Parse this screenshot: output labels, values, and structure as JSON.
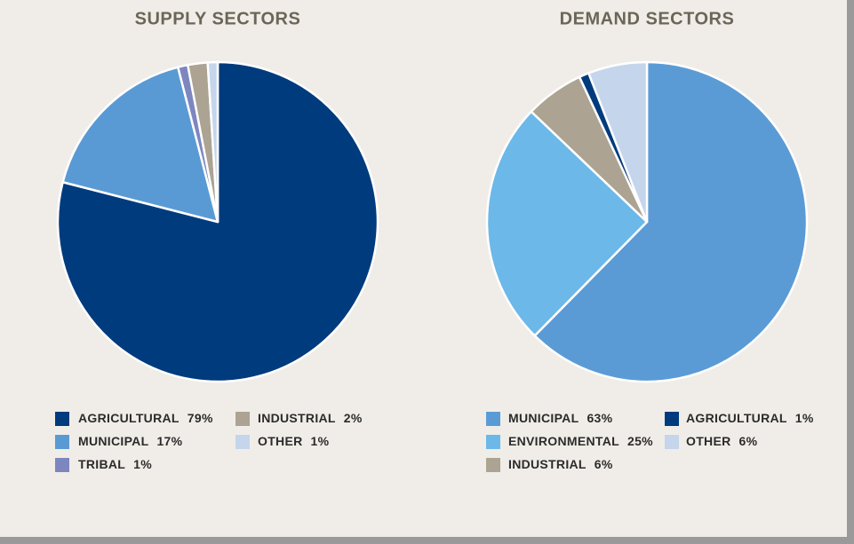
{
  "chart_data": [
    {
      "type": "pie",
      "title": "SUPPLY SECTORS",
      "categories": [
        "AGRICULTURAL",
        "MUNICIPAL",
        "TRIBAL",
        "INDUSTRIAL",
        "OTHER"
      ],
      "values": [
        79,
        17,
        1,
        2,
        1
      ],
      "value_labels": [
        "79%",
        "17%",
        "1%",
        "2%",
        "1%"
      ],
      "colors": [
        "#003b7e",
        "#5a9ad4",
        "#7d86bf",
        "#aca392",
        "#c5d5ec"
      ]
    },
    {
      "type": "pie",
      "title": "DEMAND SECTORS",
      "categories": [
        "MUNICIPAL",
        "ENVIRONMENTAL",
        "INDUSTRIAL",
        "AGRICULTURAL",
        "OTHER"
      ],
      "values": [
        63,
        25,
        6,
        1,
        6
      ],
      "value_labels": [
        "63%",
        "25%",
        "6%",
        "1%",
        "6%"
      ],
      "colors": [
        "#5b9bd5",
        "#6cb8e8",
        "#aca392",
        "#003b7e",
        "#c5d5ec"
      ]
    }
  ]
}
